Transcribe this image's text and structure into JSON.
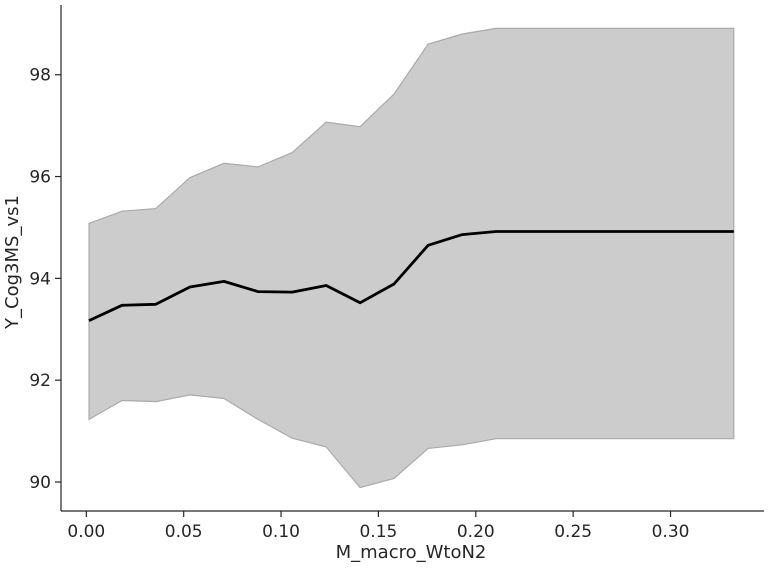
{
  "chart_data": {
    "type": "line",
    "title": "",
    "xlabel": "M_macro_WtoN2",
    "ylabel": "Y_Cog3MS_vs1",
    "xlim": [
      -0.013,
      0.348
    ],
    "ylim": [
      89.43,
      99.37
    ],
    "xticks": [
      0.0,
      0.05,
      0.1,
      0.15,
      0.2,
      0.25,
      0.3
    ],
    "xtick_labels": [
      "0.00",
      "0.05",
      "0.10",
      "0.15",
      "0.20",
      "0.25",
      "0.30"
    ],
    "yticks": [
      90,
      92,
      94,
      96,
      98
    ],
    "ytick_labels": [
      "90",
      "92",
      "94",
      "96",
      "98"
    ],
    "grid": false,
    "line_color": "#000000",
    "band_color": "#cccccc",
    "band_edge_color": "#aaaaaa",
    "x": [
      0.0014,
      0.0183,
      0.0357,
      0.0532,
      0.0707,
      0.0882,
      0.1057,
      0.1232,
      0.1406,
      0.158,
      0.1755,
      0.193,
      0.2104,
      0.3325
    ],
    "series": [
      {
        "values": [
          93.17,
          93.47,
          93.49,
          93.83,
          93.94,
          93.74,
          93.73,
          93.86,
          93.52,
          93.89,
          94.65,
          94.86,
          94.92,
          94.92
        ]
      }
    ],
    "band": {
      "upper": [
        95.08,
        95.32,
        95.37,
        95.98,
        96.26,
        96.19,
        96.47,
        97.07,
        96.98,
        97.62,
        98.6,
        98.8,
        98.91,
        98.91
      ],
      "lower": [
        91.23,
        91.6,
        91.58,
        91.71,
        91.64,
        91.23,
        90.86,
        90.69,
        89.89,
        90.07,
        90.66,
        90.73,
        90.85,
        90.85
      ]
    }
  }
}
